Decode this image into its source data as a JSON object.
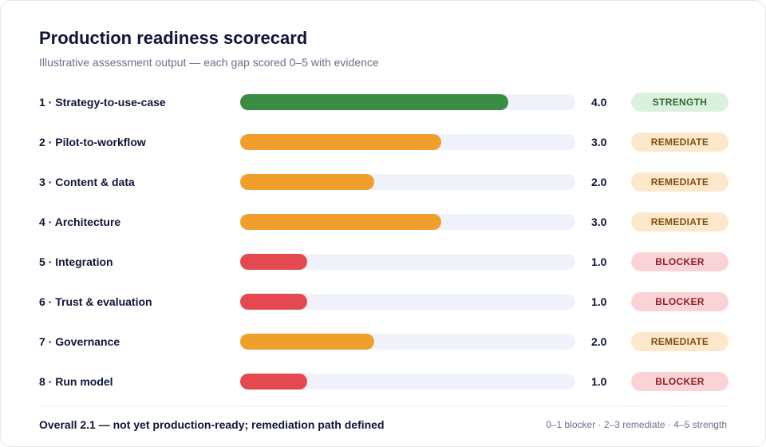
{
  "header": {
    "title": "Production readiness scorecard",
    "subtitle": "Illustrative assessment output — each gap scored 0–5 with evidence"
  },
  "colors": {
    "strength": "#3b8c43",
    "remediate": "#f19f2c",
    "blocker": "#e4494f",
    "track": "#eff2fb"
  },
  "badge_styles": {
    "STRENGTH": {
      "bg": "#dbf1dd",
      "fg": "#2b6a31"
    },
    "REMEDIATE": {
      "bg": "#fde8cb",
      "fg": "#7e4e10"
    },
    "BLOCKER": {
      "bg": "#fad3d7",
      "fg": "#8f1e27"
    }
  },
  "chart_data": {
    "type": "bar",
    "orientation": "horizontal",
    "xlim": [
      0,
      5
    ],
    "categories": [
      "1 · Strategy-to-use-case",
      "2 · Pilot-to-workflow",
      "3 · Content & data",
      "4 · Architecture",
      "5 · Integration",
      "6 · Trust & evaluation",
      "7 · Governance",
      "8 · Run model"
    ],
    "values": [
      4.0,
      3.0,
      2.0,
      3.0,
      1.0,
      1.0,
      2.0,
      1.0
    ],
    "value_labels": [
      "4.0",
      "3.0",
      "2.0",
      "3.0",
      "1.0",
      "1.0",
      "2.0",
      "1.0"
    ],
    "statuses": [
      "STRENGTH",
      "REMEDIATE",
      "REMEDIATE",
      "REMEDIATE",
      "BLOCKER",
      "BLOCKER",
      "REMEDIATE",
      "BLOCKER"
    ],
    "grid": false,
    "legend": "none"
  },
  "footer": {
    "summary": "Overall 2.1 — not yet production-ready; remediation path defined",
    "legend": "0–1 blocker · 2–3 remediate · 4–5 strength"
  }
}
